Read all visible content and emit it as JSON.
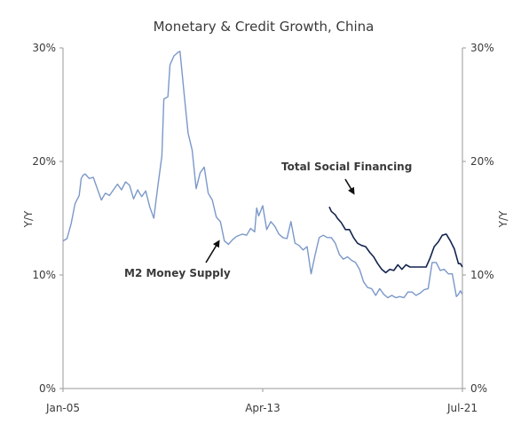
{
  "chart_data": {
    "type": "line",
    "title": "Monetary & Credit Growth, China",
    "ylabel_left": "Y/Y",
    "ylabel_right": "Y/Y",
    "ylim": [
      0,
      30
    ],
    "y_ticks": [
      "0%",
      "10%",
      "20%",
      "30%"
    ],
    "x_ticks": [
      "Jan-05",
      "Apr-13",
      "Jul-21"
    ],
    "xlim": [
      "2005-01",
      "2021-07"
    ],
    "grid": false,
    "colors": {
      "m2": "#7b98c9",
      "tsf": "#14244f",
      "axis": "#9a9a9a",
      "text": "#3a3a3a"
    },
    "series": [
      {
        "name": "M2 Money Supply",
        "color": "#7b98c9",
        "points": [
          [
            "2005-01",
            13.0
          ],
          [
            "2005-03",
            13.2
          ],
          [
            "2005-05",
            14.5
          ],
          [
            "2005-07",
            16.3
          ],
          [
            "2005-09",
            17.0
          ],
          [
            "2005-10",
            18.5
          ],
          [
            "2005-11",
            18.8
          ],
          [
            "2005-12",
            18.9
          ],
          [
            "2006-02",
            18.5
          ],
          [
            "2006-04",
            18.6
          ],
          [
            "2006-06",
            17.6
          ],
          [
            "2006-08",
            16.6
          ],
          [
            "2006-10",
            17.2
          ],
          [
            "2006-12",
            17.0
          ],
          [
            "2007-02",
            17.5
          ],
          [
            "2007-04",
            18.0
          ],
          [
            "2007-06",
            17.5
          ],
          [
            "2007-08",
            18.2
          ],
          [
            "2007-10",
            17.9
          ],
          [
            "2007-12",
            16.7
          ],
          [
            "2008-02",
            17.5
          ],
          [
            "2008-04",
            16.9
          ],
          [
            "2008-06",
            17.4
          ],
          [
            "2008-08",
            16.0
          ],
          [
            "2008-10",
            15.0
          ],
          [
            "2008-12",
            17.8
          ],
          [
            "2009-02",
            20.5
          ],
          [
            "2009-03",
            25.5
          ],
          [
            "2009-05",
            25.7
          ],
          [
            "2009-06",
            28.5
          ],
          [
            "2009-08",
            29.3
          ],
          [
            "2009-10",
            29.6
          ],
          [
            "2009-11",
            29.7
          ],
          [
            "2010-01",
            26.0
          ],
          [
            "2010-03",
            22.5
          ],
          [
            "2010-05",
            21.0
          ],
          [
            "2010-07",
            17.6
          ],
          [
            "2010-09",
            19.0
          ],
          [
            "2010-11",
            19.5
          ],
          [
            "2011-01",
            17.2
          ],
          [
            "2011-03",
            16.6
          ],
          [
            "2011-05",
            15.1
          ],
          [
            "2011-07",
            14.7
          ],
          [
            "2011-09",
            13.0
          ],
          [
            "2011-11",
            12.7
          ],
          [
            "2012-01",
            13.1
          ],
          [
            "2012-03",
            13.4
          ],
          [
            "2012-06",
            13.6
          ],
          [
            "2012-08",
            13.5
          ],
          [
            "2012-10",
            14.1
          ],
          [
            "2012-12",
            13.8
          ],
          [
            "2013-01",
            15.9
          ],
          [
            "2013-02",
            15.2
          ],
          [
            "2013-04",
            16.1
          ],
          [
            "2013-06",
            14.0
          ],
          [
            "2013-08",
            14.7
          ],
          [
            "2013-10",
            14.3
          ],
          [
            "2013-12",
            13.6
          ],
          [
            "2014-02",
            13.3
          ],
          [
            "2014-04",
            13.2
          ],
          [
            "2014-06",
            14.7
          ],
          [
            "2014-08",
            12.8
          ],
          [
            "2014-10",
            12.6
          ],
          [
            "2014-12",
            12.2
          ],
          [
            "2015-02",
            12.5
          ],
          [
            "2015-04",
            10.1
          ],
          [
            "2015-06",
            11.8
          ],
          [
            "2015-08",
            13.3
          ],
          [
            "2015-10",
            13.5
          ],
          [
            "2015-12",
            13.3
          ],
          [
            "2016-02",
            13.3
          ],
          [
            "2016-04",
            12.8
          ],
          [
            "2016-06",
            11.8
          ],
          [
            "2016-08",
            11.4
          ],
          [
            "2016-10",
            11.6
          ],
          [
            "2016-12",
            11.3
          ],
          [
            "2017-02",
            11.1
          ],
          [
            "2017-04",
            10.5
          ],
          [
            "2017-06",
            9.4
          ],
          [
            "2017-08",
            8.9
          ],
          [
            "2017-10",
            8.8
          ],
          [
            "2017-12",
            8.2
          ],
          [
            "2018-02",
            8.8
          ],
          [
            "2018-04",
            8.3
          ],
          [
            "2018-06",
            8.0
          ],
          [
            "2018-08",
            8.2
          ],
          [
            "2018-10",
            8.0
          ],
          [
            "2018-12",
            8.1
          ],
          [
            "2019-02",
            8.0
          ],
          [
            "2019-04",
            8.5
          ],
          [
            "2019-06",
            8.5
          ],
          [
            "2019-08",
            8.2
          ],
          [
            "2019-10",
            8.4
          ],
          [
            "2019-12",
            8.7
          ],
          [
            "2020-02",
            8.8
          ],
          [
            "2020-04",
            11.1
          ],
          [
            "2020-06",
            11.1
          ],
          [
            "2020-08",
            10.4
          ],
          [
            "2020-10",
            10.5
          ],
          [
            "2020-12",
            10.1
          ],
          [
            "2021-02",
            10.1
          ],
          [
            "2021-04",
            8.1
          ],
          [
            "2021-05",
            8.3
          ],
          [
            "2021-06",
            8.6
          ],
          [
            "2021-07",
            8.3
          ]
        ]
      },
      {
        "name": "Total Social Financing",
        "color": "#14244f",
        "points": [
          [
            "2016-01",
            16.0
          ],
          [
            "2016-02",
            15.6
          ],
          [
            "2016-04",
            15.3
          ],
          [
            "2016-05",
            15.0
          ],
          [
            "2016-07",
            14.6
          ],
          [
            "2016-09",
            14.0
          ],
          [
            "2016-11",
            14.0
          ],
          [
            "2017-01",
            13.3
          ],
          [
            "2017-03",
            12.8
          ],
          [
            "2017-05",
            12.6
          ],
          [
            "2017-07",
            12.5
          ],
          [
            "2017-09",
            12.0
          ],
          [
            "2017-11",
            11.6
          ],
          [
            "2018-01",
            11.0
          ],
          [
            "2018-03",
            10.5
          ],
          [
            "2018-05",
            10.2
          ],
          [
            "2018-07",
            10.5
          ],
          [
            "2018-09",
            10.4
          ],
          [
            "2018-11",
            10.9
          ],
          [
            "2019-01",
            10.5
          ],
          [
            "2019-03",
            10.9
          ],
          [
            "2019-05",
            10.7
          ],
          [
            "2019-07",
            10.7
          ],
          [
            "2019-09",
            10.7
          ],
          [
            "2019-11",
            10.7
          ],
          [
            "2020-01",
            10.7
          ],
          [
            "2020-03",
            11.5
          ],
          [
            "2020-05",
            12.5
          ],
          [
            "2020-07",
            12.9
          ],
          [
            "2020-09",
            13.5
          ],
          [
            "2020-11",
            13.6
          ],
          [
            "2020-12",
            13.3
          ],
          [
            "2021-01",
            13.0
          ],
          [
            "2021-03",
            12.3
          ],
          [
            "2021-05",
            11.0
          ],
          [
            "2021-06",
            11.0
          ],
          [
            "2021-07",
            10.7
          ]
        ]
      }
    ],
    "annotations": [
      {
        "text": "Total Social Financing",
        "series": "Total Social Financing"
      },
      {
        "text": "M2 Money Supply",
        "series": "M2 Money Supply"
      }
    ]
  }
}
